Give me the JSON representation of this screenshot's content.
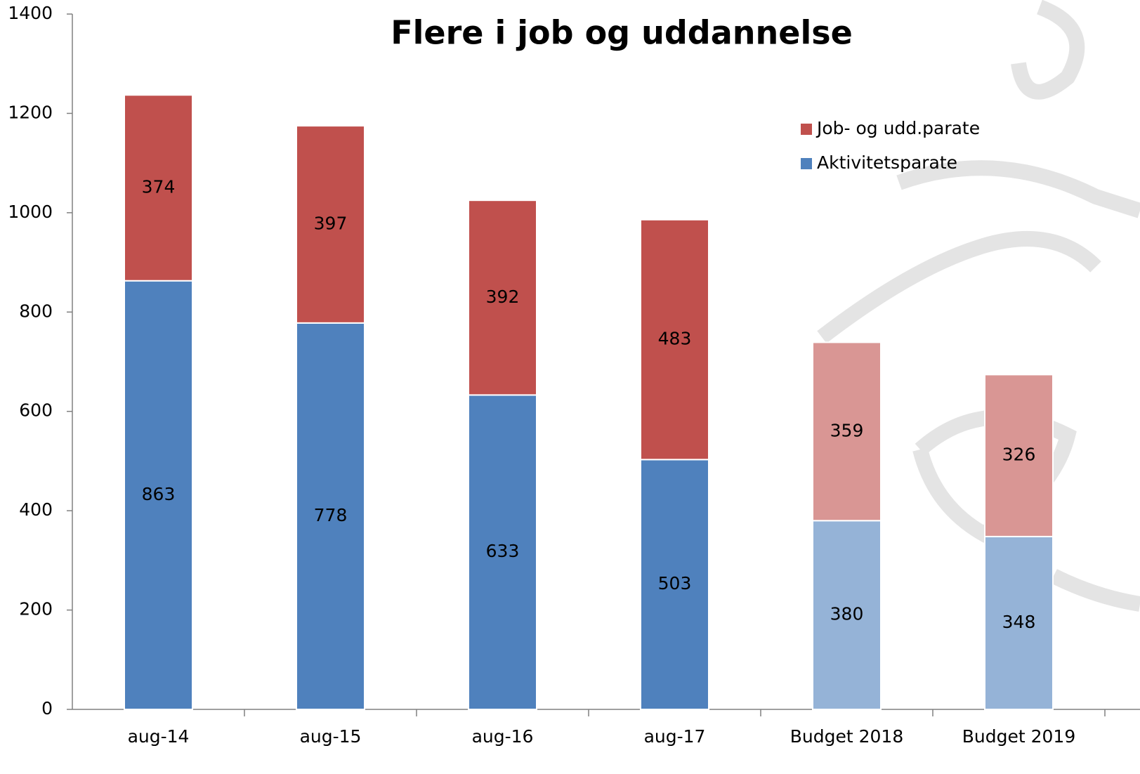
{
  "chart_data": {
    "type": "stacked_bar",
    "title": "Flere i job og uddannelse",
    "categories": [
      "aug-14",
      "aug-15",
      "aug-16",
      "aug-17",
      "Budget 2018",
      "Budget 2019"
    ],
    "series": [
      {
        "name": "Aktivitetsparate",
        "color": "#4f81bd",
        "colors": [
          "#4f81bd",
          "#4f81bd",
          "#4f81bd",
          "#4f81bd",
          "#95b3d7",
          "#95b3d7"
        ],
        "values": [
          863,
          778,
          633,
          503,
          380,
          348
        ]
      },
      {
        "name": "Job- og udd.parate",
        "color": "#c0504d",
        "colors": [
          "#c0504d",
          "#c0504d",
          "#c0504d",
          "#c0504d",
          "#d99694",
          "#d99694"
        ],
        "values": [
          374,
          397,
          392,
          483,
          359,
          326
        ]
      }
    ],
    "ylim": [
      0,
      1400
    ],
    "yticks": [
      0,
      200,
      400,
      600,
      800,
      1000,
      1200,
      1400
    ],
    "legend": "upper right"
  }
}
